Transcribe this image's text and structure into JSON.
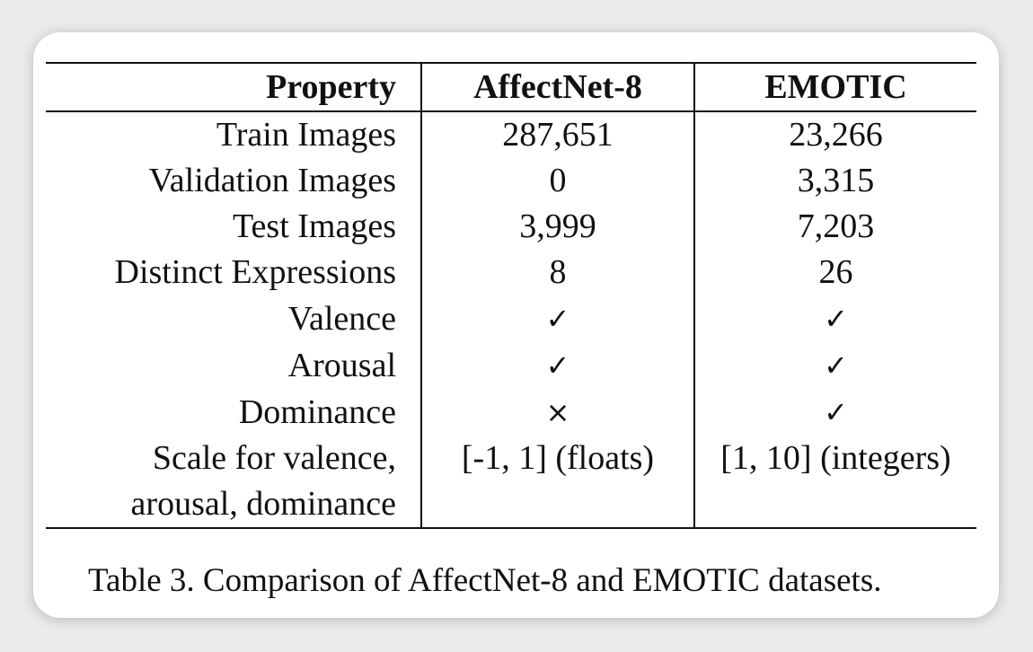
{
  "table": {
    "headers": [
      "Property",
      "AffectNet-8",
      "EMOTIC"
    ],
    "rows": [
      [
        "Train Images",
        "287,651",
        "23,266"
      ],
      [
        "Validation Images",
        "0",
        "3,315"
      ],
      [
        "Test Images",
        "3,999",
        "7,203"
      ],
      [
        "Distinct Expressions",
        "8",
        "26"
      ],
      [
        "Valence",
        "✓",
        "✓"
      ],
      [
        "Arousal",
        "✓",
        "✓"
      ],
      [
        "Dominance",
        "×",
        "✓"
      ]
    ],
    "last_row": {
      "label_line1": "Scale for valence,",
      "label_line2": "arousal, dominance",
      "affectnet": "[-1, 1] (floats)",
      "emotic": "[1, 10] (integers)"
    }
  },
  "caption": "Table 3. Comparison of AffectNet-8 and EMOTIC datasets."
}
